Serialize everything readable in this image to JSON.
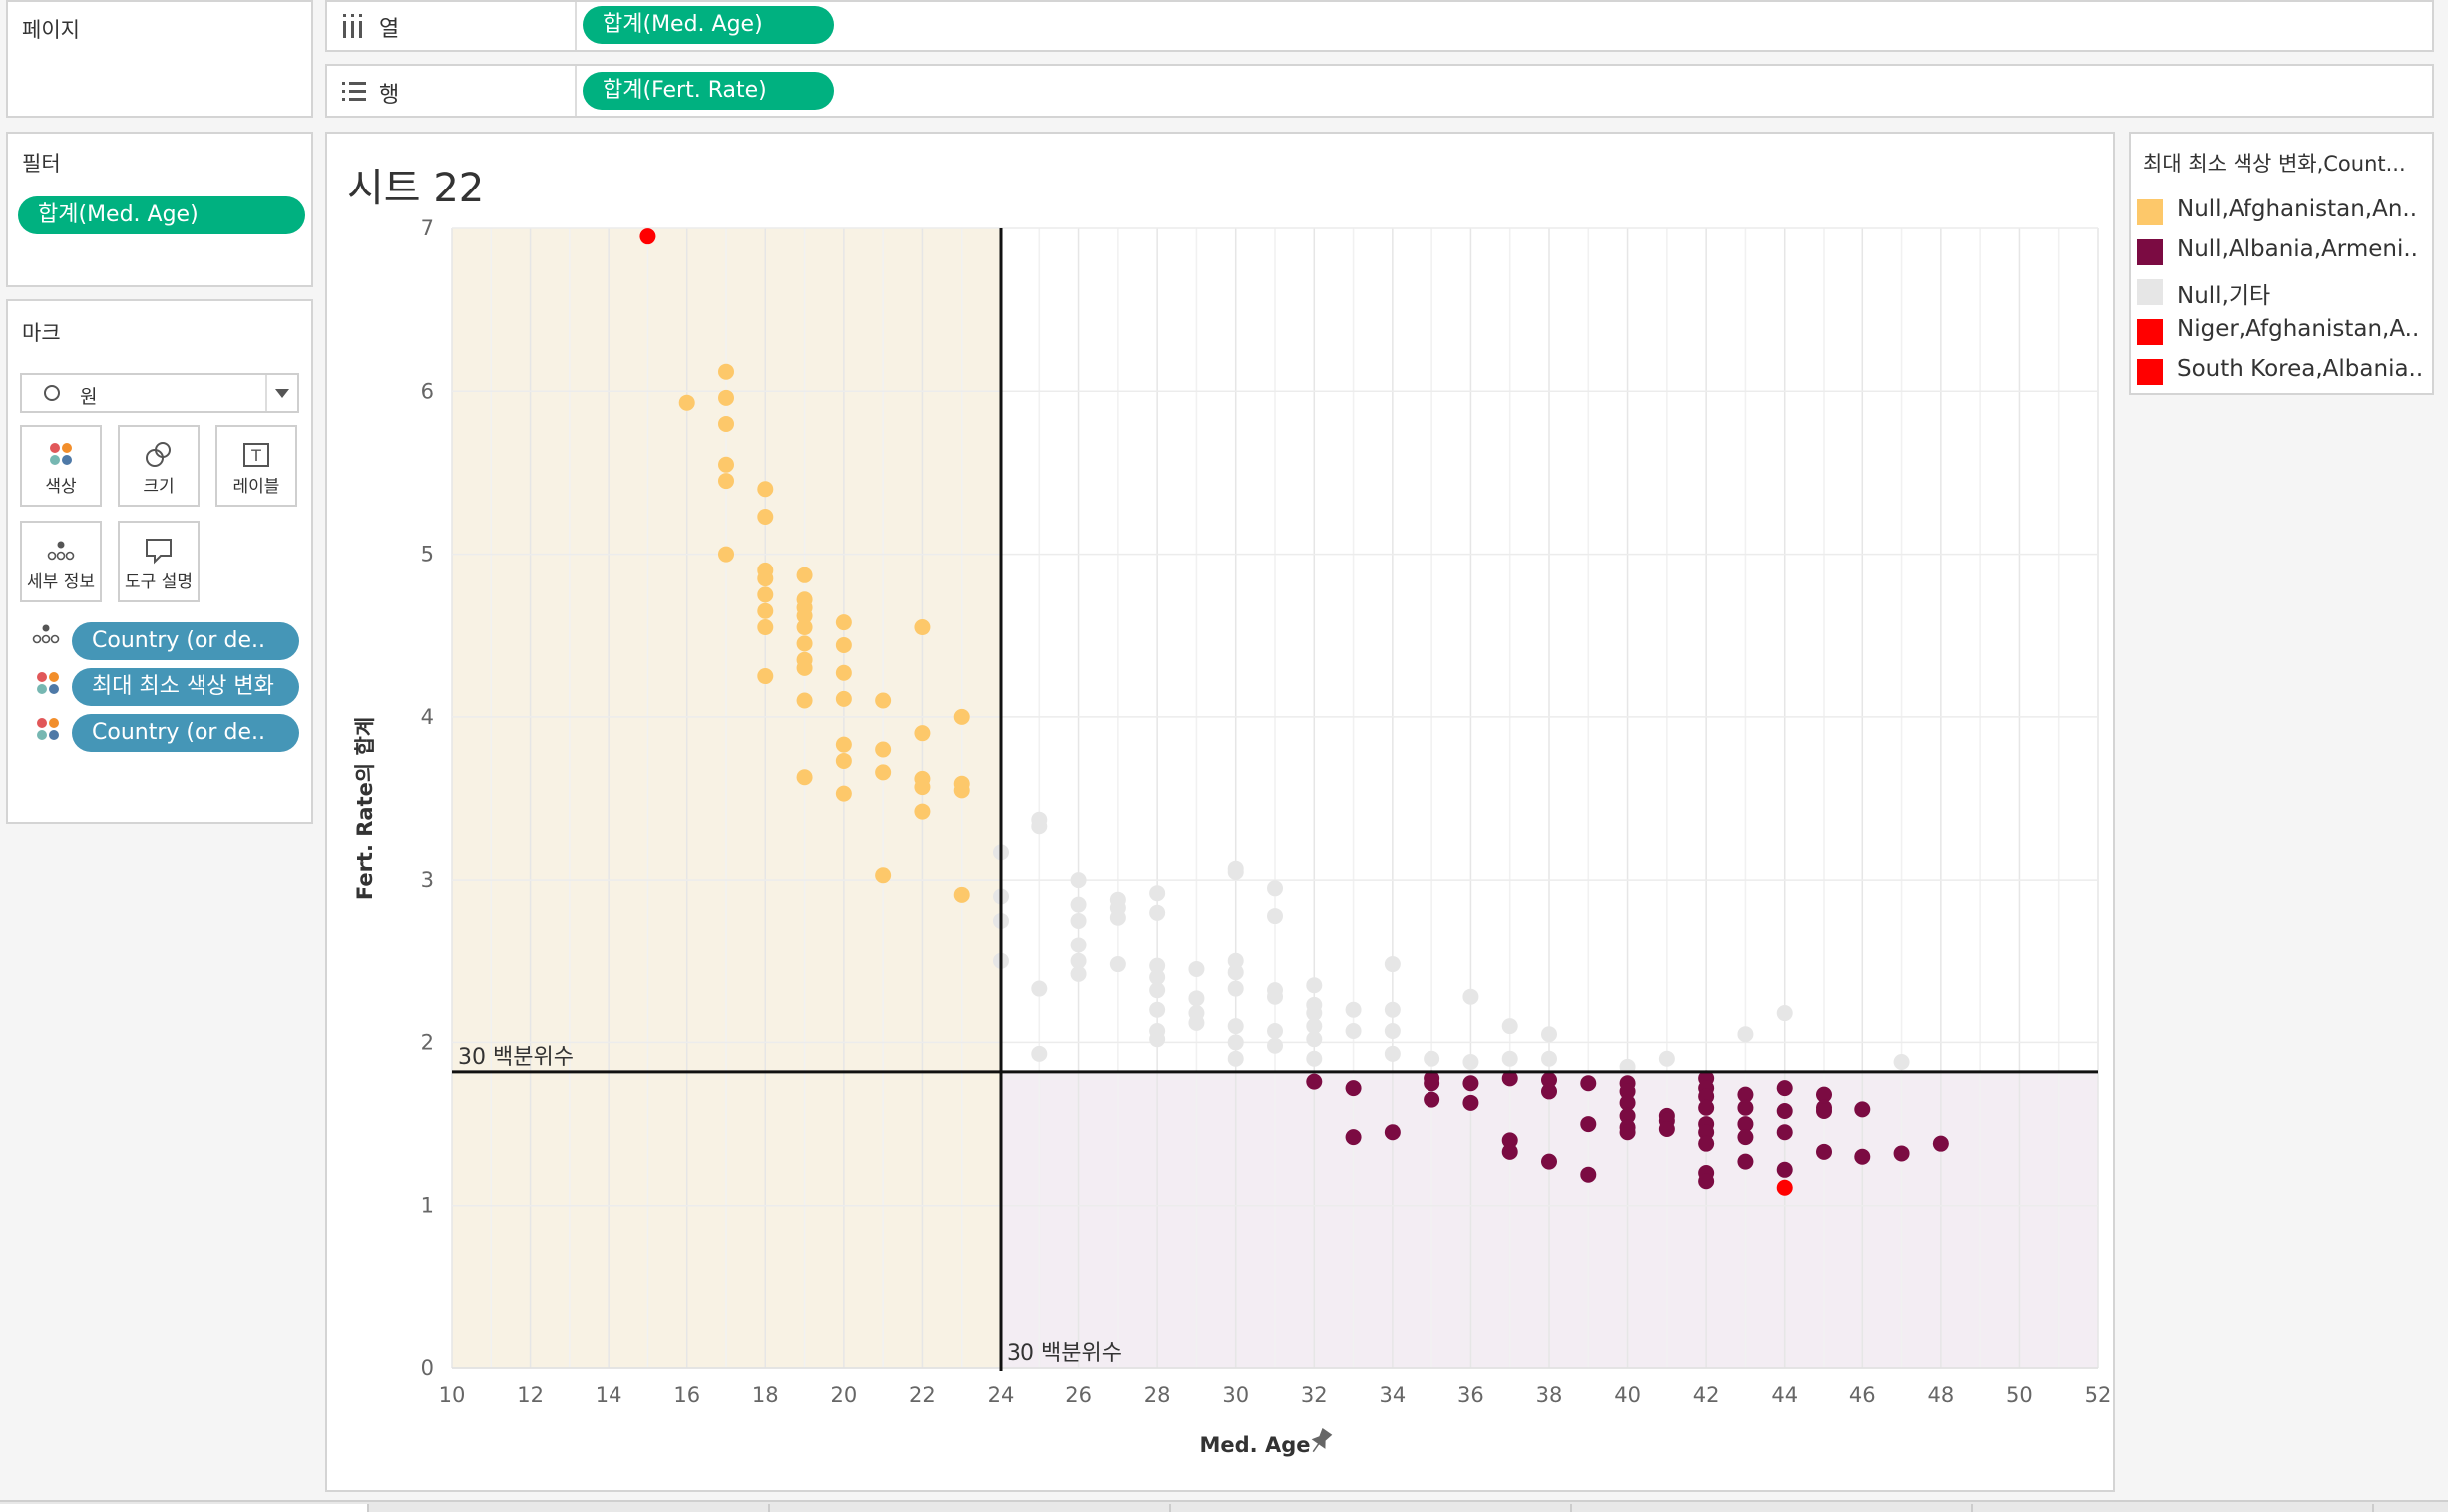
{
  "shelves": {
    "pages_label": "페이지",
    "columns_label": "열",
    "rows_label": "행",
    "columns_pill": "합계(Med. Age)",
    "rows_pill": "합계(Fert. Rate)"
  },
  "filters": {
    "title": "필터",
    "pill": "합계(Med. Age)"
  },
  "marks": {
    "title": "마크",
    "mark_type": "원",
    "buttons": {
      "color": "색상",
      "size": "크기",
      "label": "레이블",
      "detail": "세부 정보",
      "tooltip": "도구 설명"
    },
    "fields": [
      {
        "label": "Country (or de..",
        "icon": "detail-icon"
      },
      {
        "label": "최대 최소 색상 변화",
        "icon": "color-icon"
      },
      {
        "label": "Country (or de..",
        "icon": "color-icon"
      }
    ]
  },
  "sheet": {
    "title": "시트 22"
  },
  "legend": {
    "title": "최대 최소 색상 변화,Count...",
    "items": [
      {
        "label": "Null,Afghanistan,An..",
        "color": "#fdc86a"
      },
      {
        "label": "Null,Albania,Armeni..",
        "color": "#7b0b42"
      },
      {
        "label": "Null,기타",
        "color": "#e6e6e6"
      },
      {
        "label": "Niger,Afghanistan,A..",
        "color": "#ff0000"
      },
      {
        "label": "South Korea,Albania..",
        "color": "#ff0000"
      }
    ]
  },
  "chart_data": {
    "type": "scatter",
    "title": "시트 22",
    "xlabel": "Med. Age",
    "ylabel": "Fert. Rate의 합계",
    "xlim": [
      10,
      52
    ],
    "ylim": [
      0,
      7
    ],
    "x_ticks": [
      10,
      12,
      14,
      16,
      18,
      20,
      22,
      24,
      26,
      28,
      30,
      32,
      34,
      36,
      38,
      40,
      42,
      44,
      46,
      48,
      50,
      52
    ],
    "y_ticks": [
      0,
      1,
      2,
      3,
      4,
      5,
      6,
      7
    ],
    "reference_lines": [
      {
        "axis": "x",
        "value": 24,
        "label": "30 백분위수"
      },
      {
        "axis": "y",
        "value": 1.82,
        "label": "30 백분위수"
      }
    ],
    "series": [
      {
        "name": "Null,Afghanistan,An..",
        "color": "#fdc86a",
        "points": [
          [
            16,
            5.93
          ],
          [
            17,
            6.12
          ],
          [
            17,
            5.96
          ],
          [
            17,
            5.8
          ],
          [
            17,
            5.55
          ],
          [
            17,
            5.45
          ],
          [
            17,
            5.0
          ],
          [
            18,
            5.4
          ],
          [
            18,
            5.23
          ],
          [
            18,
            4.9
          ],
          [
            18,
            4.85
          ],
          [
            18,
            4.75
          ],
          [
            18,
            4.65
          ],
          [
            18,
            4.55
          ],
          [
            18,
            4.25
          ],
          [
            19,
            4.87
          ],
          [
            19,
            4.72
          ],
          [
            19,
            4.67
          ],
          [
            19,
            4.62
          ],
          [
            19,
            4.55
          ],
          [
            19,
            4.45
          ],
          [
            19,
            4.35
          ],
          [
            19,
            4.3
          ],
          [
            19,
            4.1
          ],
          [
            19,
            3.63
          ],
          [
            20,
            4.58
          ],
          [
            20,
            4.44
          ],
          [
            20,
            4.27
          ],
          [
            20,
            4.11
          ],
          [
            20,
            3.83
          ],
          [
            20,
            3.73
          ],
          [
            20,
            3.53
          ],
          [
            21,
            4.1
          ],
          [
            21,
            3.8
          ],
          [
            21,
            3.66
          ],
          [
            21,
            3.03
          ],
          [
            22,
            4.55
          ],
          [
            22,
            3.9
          ],
          [
            22,
            3.62
          ],
          [
            22,
            3.57
          ],
          [
            22,
            3.42
          ],
          [
            23,
            4.0
          ],
          [
            23,
            3.59
          ],
          [
            23,
            3.55
          ],
          [
            23,
            2.91
          ]
        ]
      },
      {
        "name": "Null,기타",
        "color": "#e6e6e6",
        "points": [
          [
            24,
            3.17
          ],
          [
            24,
            2.9
          ],
          [
            24,
            2.75
          ],
          [
            24,
            2.5
          ],
          [
            25,
            3.37
          ],
          [
            25,
            3.33
          ],
          [
            25,
            2.33
          ],
          [
            25,
            1.93
          ],
          [
            26,
            3.0
          ],
          [
            26,
            2.85
          ],
          [
            26,
            2.75
          ],
          [
            26,
            2.6
          ],
          [
            26,
            2.5
          ],
          [
            26,
            2.42
          ],
          [
            27,
            2.88
          ],
          [
            27,
            2.83
          ],
          [
            27,
            2.77
          ],
          [
            27,
            2.48
          ],
          [
            28,
            2.92
          ],
          [
            28,
            2.8
          ],
          [
            28,
            2.47
          ],
          [
            28,
            2.4
          ],
          [
            28,
            2.32
          ],
          [
            28,
            2.2
          ],
          [
            28,
            2.07
          ],
          [
            28,
            2.02
          ],
          [
            29,
            2.45
          ],
          [
            29,
            2.27
          ],
          [
            29,
            2.18
          ],
          [
            29,
            2.12
          ],
          [
            30,
            3.07
          ],
          [
            30,
            3.05
          ],
          [
            30,
            2.5
          ],
          [
            30,
            2.43
          ],
          [
            30,
            2.33
          ],
          [
            30,
            2.1
          ],
          [
            30,
            2.0
          ],
          [
            30,
            1.9
          ],
          [
            31,
            2.95
          ],
          [
            31,
            2.78
          ],
          [
            31,
            2.32
          ],
          [
            31,
            2.28
          ],
          [
            31,
            2.07
          ],
          [
            31,
            1.98
          ],
          [
            32,
            2.35
          ],
          [
            32,
            2.23
          ],
          [
            32,
            2.18
          ],
          [
            32,
            2.1
          ],
          [
            32,
            2.02
          ],
          [
            32,
            1.9
          ],
          [
            33,
            2.2
          ],
          [
            33,
            2.07
          ],
          [
            34,
            2.48
          ],
          [
            34,
            2.2
          ],
          [
            34,
            2.07
          ],
          [
            34,
            1.93
          ],
          [
            35,
            1.9
          ],
          [
            36,
            2.28
          ],
          [
            36,
            1.88
          ],
          [
            37,
            2.1
          ],
          [
            37,
            1.9
          ],
          [
            38,
            2.05
          ],
          [
            38,
            1.9
          ],
          [
            40,
            1.85
          ],
          [
            41,
            1.9
          ],
          [
            43,
            2.05
          ],
          [
            44,
            2.18
          ],
          [
            47,
            1.88
          ]
        ]
      },
      {
        "name": "Null,Albania,Armeni..",
        "color": "#7b0b42",
        "points": [
          [
            32,
            1.76
          ],
          [
            33,
            1.72
          ],
          [
            33,
            1.42
          ],
          [
            34,
            1.45
          ],
          [
            35,
            1.78
          ],
          [
            35,
            1.75
          ],
          [
            35,
            1.65
          ],
          [
            36,
            1.75
          ],
          [
            36,
            1.63
          ],
          [
            37,
            1.78
          ],
          [
            37,
            1.4
          ],
          [
            37,
            1.33
          ],
          [
            38,
            1.77
          ],
          [
            38,
            1.7
          ],
          [
            38,
            1.27
          ],
          [
            39,
            1.75
          ],
          [
            39,
            1.5
          ],
          [
            39,
            1.19
          ],
          [
            40,
            1.75
          ],
          [
            40,
            1.7
          ],
          [
            40,
            1.63
          ],
          [
            40,
            1.55
          ],
          [
            40,
            1.48
          ],
          [
            40,
            1.45
          ],
          [
            41,
            1.55
          ],
          [
            41,
            1.52
          ],
          [
            41,
            1.47
          ],
          [
            42,
            1.78
          ],
          [
            42,
            1.72
          ],
          [
            42,
            1.67
          ],
          [
            42,
            1.6
          ],
          [
            42,
            1.5
          ],
          [
            42,
            1.45
          ],
          [
            42,
            1.38
          ],
          [
            42,
            1.2
          ],
          [
            42,
            1.15
          ],
          [
            43,
            1.68
          ],
          [
            43,
            1.6
          ],
          [
            43,
            1.5
          ],
          [
            43,
            1.42
          ],
          [
            43,
            1.27
          ],
          [
            44,
            1.72
          ],
          [
            44,
            1.58
          ],
          [
            44,
            1.45
          ],
          [
            44,
            1.22
          ],
          [
            45,
            1.68
          ],
          [
            45,
            1.6
          ],
          [
            45,
            1.58
          ],
          [
            45,
            1.33
          ],
          [
            46,
            1.59
          ],
          [
            46,
            1.3
          ],
          [
            47,
            1.32
          ],
          [
            48,
            1.38
          ]
        ]
      },
      {
        "name": "Niger,Afghanistan,A..",
        "color": "#ff0000",
        "points": [
          [
            15,
            6.95
          ]
        ]
      },
      {
        "name": "South Korea,Albania..",
        "color": "#ff0000",
        "points": [
          [
            44,
            1.11
          ]
        ]
      }
    ]
  }
}
